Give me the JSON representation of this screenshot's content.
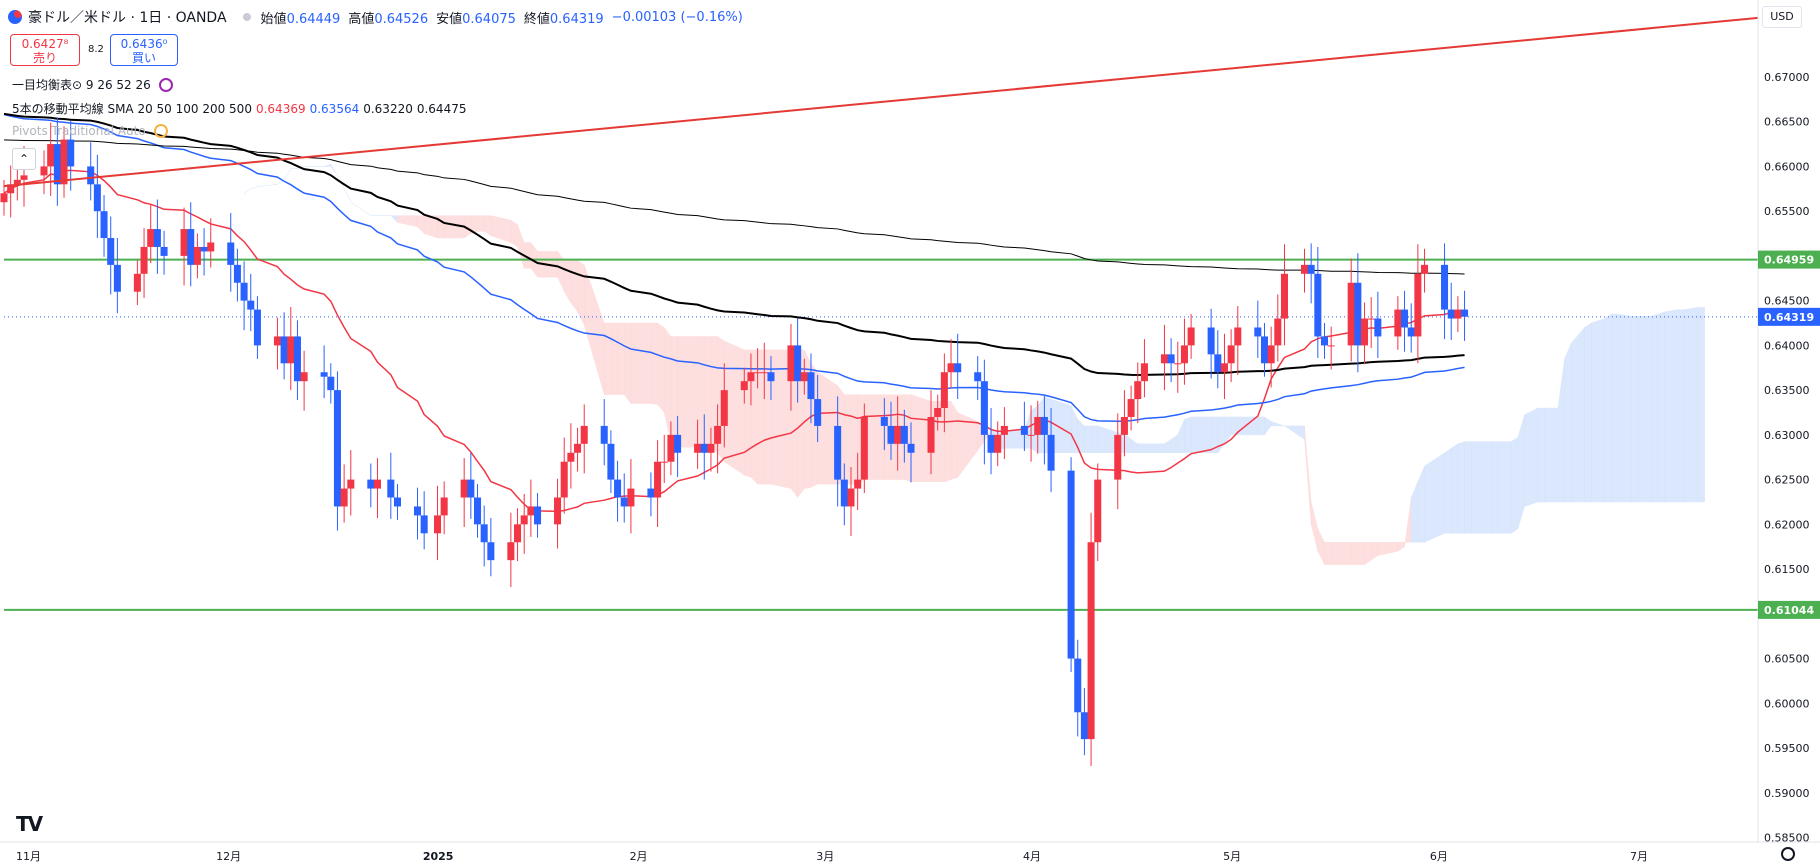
{
  "header": {
    "symbol": "豪ドル／米ドル · 1日 · OANDA",
    "open_label": "始値",
    "open": "0.64449",
    "high_label": "高値",
    "high": "0.64526",
    "low_label": "安値",
    "low": "0.64075",
    "close_label": "終値",
    "close": "0.64319",
    "change": "−0.00103 (−0.16%)"
  },
  "trade": {
    "sell_price": "0.6427⁸",
    "sell_label": "売り",
    "spread": "8.2",
    "buy_price": "0.6436⁰",
    "buy_label": "買い"
  },
  "indicators": {
    "ichimoku": "一目均衡表⊙ 9 26 52 26",
    "sma_label": "5本の移動平均線 SMA 20 50 100 200 500",
    "sma_values": [
      "0.64369",
      "0.63564",
      "0.63220",
      "0.64475"
    ],
    "pivot": "Pivots Traditional Auto"
  },
  "currency": "USD",
  "colors": {
    "up": "#f23645",
    "down": "#2962ff",
    "sma20": "#f23645",
    "sma50": "#2962ff",
    "sma100": "#000000",
    "sma200": "#000000",
    "trend": "#e53935",
    "level": "#4caf50",
    "cloud_bull": "#cfe0fb",
    "cloud_bear": "#fdd5d5"
  },
  "chart_data": {
    "type": "candlestick",
    "y_range": [
      0.5845,
      0.6786
    ],
    "y_ticks": [
      "0.67000",
      "0.66500",
      "0.66000",
      "0.65500",
      "0.65000",
      "0.64500",
      "0.64000",
      "0.63500",
      "0.63000",
      "0.62500",
      "0.62000",
      "0.61500",
      "0.61000",
      "0.60500",
      "0.60000",
      "0.59500",
      "0.59000",
      "0.58500"
    ],
    "x_labels": [
      {
        "label": "11月",
        "date": "2024-11-01"
      },
      {
        "label": "12月",
        "date": "2024-12-01"
      },
      {
        "label": "2025",
        "date": "2025-01-01"
      },
      {
        "label": "2月",
        "date": "2025-02-01"
      },
      {
        "label": "3月",
        "date": "2025-03-01"
      },
      {
        "label": "4月",
        "date": "2025-04-01"
      },
      {
        "label": "5月",
        "date": "2025-05-01"
      },
      {
        "label": "6月",
        "date": "2025-06-01"
      },
      {
        "label": "7月",
        "date": "2025-07-01"
      }
    ],
    "x_range": [
      "2024-10-29",
      "2025-07-19"
    ],
    "h_levels": [
      {
        "value": 0.64959,
        "label": "0.64959"
      },
      {
        "value": 0.61044,
        "label": "0.61044"
      }
    ],
    "last_price": {
      "value": 0.64319,
      "label": "0.64319"
    },
    "trendline": [
      {
        "date": "2024-10-29",
        "value": 0.6578
      },
      {
        "date": "2025-07-19",
        "value": 0.6766
      }
    ],
    "closes": [
      [
        "2024-10-29",
        0.657
      ],
      [
        "2024-10-30",
        0.658
      ],
      [
        "2024-10-31",
        0.6585
      ],
      [
        "2024-11-01",
        0.659
      ],
      [
        "2024-11-04",
        0.66
      ],
      [
        "2024-11-05",
        0.6625
      ],
      [
        "2024-11-06",
        0.658
      ],
      [
        "2024-11-07",
        0.663
      ],
      [
        "2024-11-08",
        0.66
      ],
      [
        "2024-11-11",
        0.658
      ],
      [
        "2024-11-12",
        0.655
      ],
      [
        "2024-11-13",
        0.652
      ],
      [
        "2024-11-14",
        0.649
      ],
      [
        "2024-11-15",
        0.646
      ],
      [
        "2024-11-18",
        0.648
      ],
      [
        "2024-11-19",
        0.651
      ],
      [
        "2024-11-20",
        0.653
      ],
      [
        "2024-11-21",
        0.651
      ],
      [
        "2024-11-22",
        0.65
      ],
      [
        "2024-11-25",
        0.653
      ],
      [
        "2024-11-26",
        0.649
      ],
      [
        "2024-11-27",
        0.651
      ],
      [
        "2024-11-28",
        0.6505
      ],
      [
        "2024-11-29",
        0.6515
      ],
      [
        "2024-12-02",
        0.649
      ],
      [
        "2024-12-03",
        0.647
      ],
      [
        "2024-12-04",
        0.645
      ],
      [
        "2024-12-05",
        0.644
      ],
      [
        "2024-12-06",
        0.64
      ],
      [
        "2024-12-09",
        0.641
      ],
      [
        "2024-12-10",
        0.638
      ],
      [
        "2024-12-11",
        0.641
      ],
      [
        "2024-12-12",
        0.636
      ],
      [
        "2024-12-13",
        0.637
      ],
      [
        "2024-12-16",
        0.6365
      ],
      [
        "2024-12-17",
        0.635
      ],
      [
        "2024-12-18",
        0.622
      ],
      [
        "2024-12-19",
        0.624
      ],
      [
        "2024-12-20",
        0.625
      ],
      [
        "2024-12-23",
        0.624
      ],
      [
        "2024-12-24",
        0.625
      ],
      [
        "2024-12-26",
        0.623
      ],
      [
        "2024-12-27",
        0.622
      ],
      [
        "2024-12-30",
        0.621
      ],
      [
        "2024-12-31",
        0.619
      ],
      [
        "2025-01-02",
        0.621
      ],
      [
        "2025-01-03",
        0.623
      ],
      [
        "2025-01-06",
        0.625
      ],
      [
        "2025-01-07",
        0.623
      ],
      [
        "2025-01-08",
        0.62
      ],
      [
        "2025-01-09",
        0.618
      ],
      [
        "2025-01-10",
        0.616
      ],
      [
        "2025-01-13",
        0.618
      ],
      [
        "2025-01-14",
        0.62
      ],
      [
        "2025-01-15",
        0.621
      ],
      [
        "2025-01-16",
        0.622
      ],
      [
        "2025-01-17",
        0.62
      ],
      [
        "2025-01-20",
        0.623
      ],
      [
        "2025-01-21",
        0.627
      ],
      [
        "2025-01-22",
        0.628
      ],
      [
        "2025-01-23",
        0.629
      ],
      [
        "2025-01-24",
        0.631
      ],
      [
        "2025-01-27",
        0.629
      ],
      [
        "2025-01-28",
        0.625
      ],
      [
        "2025-01-29",
        0.623
      ],
      [
        "2025-01-30",
        0.622
      ],
      [
        "2025-01-31",
        0.624
      ],
      [
        "2025-02-03",
        0.623
      ],
      [
        "2025-02-04",
        0.627
      ],
      [
        "2025-02-05",
        0.627
      ],
      [
        "2025-02-06",
        0.63
      ],
      [
        "2025-02-07",
        0.628
      ],
      [
        "2025-02-10",
        0.629
      ],
      [
        "2025-02-11",
        0.628
      ],
      [
        "2025-02-12",
        0.629
      ],
      [
        "2025-02-13",
        0.631
      ],
      [
        "2025-02-14",
        0.635
      ],
      [
        "2025-02-17",
        0.636
      ],
      [
        "2025-02-18",
        0.637
      ],
      [
        "2025-02-19",
        0.637
      ],
      [
        "2025-02-20",
        0.637
      ],
      [
        "2025-02-21",
        0.636
      ],
      [
        "2025-02-24",
        0.64
      ],
      [
        "2025-02-25",
        0.636
      ],
      [
        "2025-02-26",
        0.637
      ],
      [
        "2025-02-27",
        0.634
      ],
      [
        "2025-02-28",
        0.631
      ],
      [
        "2025-03-03",
        0.625
      ],
      [
        "2025-03-04",
        0.622
      ],
      [
        "2025-03-05",
        0.624
      ],
      [
        "2025-03-06",
        0.625
      ],
      [
        "2025-03-07",
        0.632
      ],
      [
        "2025-03-10",
        0.631
      ],
      [
        "2025-03-11",
        0.629
      ],
      [
        "2025-03-12",
        0.631
      ],
      [
        "2025-03-13",
        0.629
      ],
      [
        "2025-03-14",
        0.628
      ],
      [
        "2025-03-17",
        0.632
      ],
      [
        "2025-03-18",
        0.633
      ],
      [
        "2025-03-19",
        0.637
      ],
      [
        "2025-03-20",
        0.638
      ],
      [
        "2025-03-21",
        0.637
      ],
      [
        "2025-03-24",
        0.636
      ],
      [
        "2025-03-25",
        0.63
      ],
      [
        "2025-03-26",
        0.628
      ],
      [
        "2025-03-27",
        0.63
      ],
      [
        "2025-03-28",
        0.631
      ],
      [
        "2025-03-31",
        0.63
      ],
      [
        "2025-04-01",
        0.63
      ],
      [
        "2025-04-02",
        0.632
      ],
      [
        "2025-04-03",
        0.63
      ],
      [
        "2025-04-04",
        0.626
      ],
      [
        "2025-04-07",
        0.605
      ],
      [
        "2025-04-08",
        0.599
      ],
      [
        "2025-04-09",
        0.596
      ],
      [
        "2025-04-10",
        0.618
      ],
      [
        "2025-04-11",
        0.625
      ],
      [
        "2025-04-14",
        0.63
      ],
      [
        "2025-04-15",
        0.632
      ],
      [
        "2025-04-16",
        0.634
      ],
      [
        "2025-04-17",
        0.636
      ],
      [
        "2025-04-18",
        0.638
      ],
      [
        "2025-04-21",
        0.639
      ],
      [
        "2025-04-22",
        0.638
      ],
      [
        "2025-04-23",
        0.638
      ],
      [
        "2025-04-24",
        0.64
      ],
      [
        "2025-04-25",
        0.642
      ],
      [
        "2025-04-28",
        0.639
      ],
      [
        "2025-04-29",
        0.637
      ],
      [
        "2025-04-30",
        0.638
      ],
      [
        "2025-05-01",
        0.64
      ],
      [
        "2025-05-02",
        0.642
      ],
      [
        "2025-05-05",
        0.641
      ],
      [
        "2025-05-06",
        0.638
      ],
      [
        "2025-05-07",
        0.64
      ],
      [
        "2025-05-08",
        0.643
      ],
      [
        "2025-05-09",
        0.648
      ],
      [
        "2025-05-12",
        0.649
      ],
      [
        "2025-05-13",
        0.648
      ],
      [
        "2025-05-14",
        0.641
      ],
      [
        "2025-05-15",
        0.64
      ],
      [
        "2025-05-16",
        0.64
      ],
      [
        "2025-05-19",
        0.647
      ],
      [
        "2025-05-20",
        0.64
      ],
      [
        "2025-05-21",
        0.643
      ],
      [
        "2025-05-22",
        0.643
      ],
      [
        "2025-05-23",
        0.641
      ],
      [
        "2025-05-26",
        0.644
      ],
      [
        "2025-05-27",
        0.642
      ],
      [
        "2025-05-28",
        0.641
      ],
      [
        "2025-05-29",
        0.648
      ],
      [
        "2025-05-30",
        0.649
      ],
      [
        "2025-06-02",
        0.644
      ],
      [
        "2025-06-03",
        0.643
      ],
      [
        "2025-06-04",
        0.644
      ],
      [
        "2025-06-05",
        0.6432
      ]
    ]
  }
}
